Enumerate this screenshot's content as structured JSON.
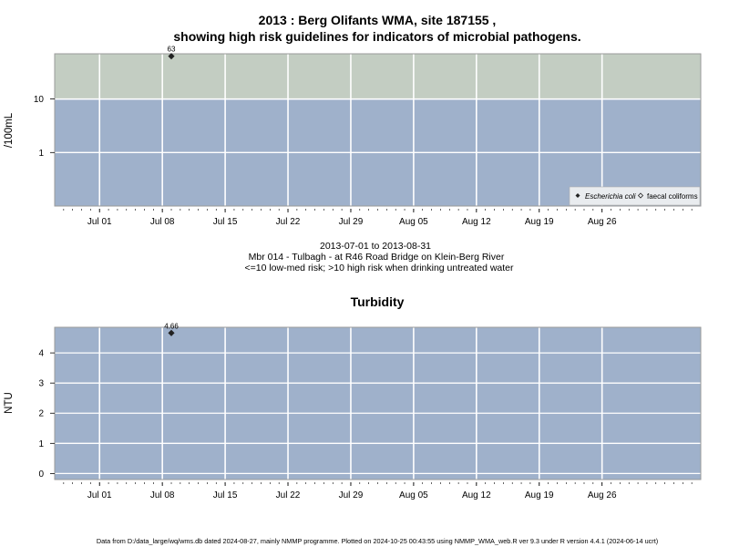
{
  "footer": "Data from D:/data_large/wq/wms.db dated 2024-08-27, mainly NMMP programme. Plotted on 2024-10-25 00:43:55 using NMMP_WMA_web.R ver 9.3 under R version 4.4.1 (2024-06-14 ucrt)",
  "chart_data": [
    {
      "type": "scatter",
      "title_line1": "2013 : Berg Olifants WMA, site 187155 ,",
      "title_line2": "showing high risk guidelines for indicators of microbial pathogens.",
      "ylabel": "/100mL",
      "yscale": "log",
      "ylim": [
        0.1,
        70
      ],
      "yticks": [
        1,
        10
      ],
      "ytick_labels": [
        "1",
        "10"
      ],
      "xlim": [
        "2013-06-26",
        "2013-09-06"
      ],
      "xticks": [
        "2013-07-01",
        "2013-07-08",
        "2013-07-15",
        "2013-07-22",
        "2013-07-29",
        "2013-08-05",
        "2013-08-12",
        "2013-08-19",
        "2013-08-26"
      ],
      "xtick_labels": [
        "Jul 01",
        "Jul 08",
        "Jul 15",
        "Jul 22",
        "Jul 29",
        "Aug 05",
        "Aug 12",
        "Aug 19",
        "Aug 26"
      ],
      "guideline": 10,
      "bands": [
        {
          "from": 10,
          "to": 70,
          "color": "#c3cdc2",
          "meaning": ">10 high risk"
        },
        {
          "from": 0.1,
          "to": 10,
          "color": "#9fb1cb",
          "meaning": "<=10 low-med risk"
        }
      ],
      "grid": true,
      "legend_position": "bottom-right",
      "legend": [
        {
          "label": "Escherichia coli",
          "marker": "filled-diamond",
          "italic": true
        },
        {
          "label": "faecal coliforms",
          "marker": "open-diamond",
          "italic": false
        }
      ],
      "series": [
        {
          "name": "Escherichia coli",
          "marker": "filled-diamond",
          "points": [
            {
              "x": "2013-07-09",
              "y": 63,
              "label": "63"
            }
          ]
        }
      ],
      "notes": [
        "2013-07-01 to 2013-08-31",
        "Mbr 014 - Tulbagh - at R46 Road Bridge on Klein-Berg River",
        "<=10 low-med risk; >10 high risk when drinking untreated water"
      ]
    },
    {
      "type": "scatter",
      "title": "Turbidity",
      "ylabel": "NTU",
      "yscale": "linear",
      "ylim": [
        -0.2,
        4.85
      ],
      "yticks": [
        0,
        1,
        2,
        3,
        4
      ],
      "ytick_labels": [
        "0",
        "1",
        "2",
        "3",
        "4"
      ],
      "xlim": [
        "2013-06-26",
        "2013-09-06"
      ],
      "xticks": [
        "2013-07-01",
        "2013-07-08",
        "2013-07-15",
        "2013-07-22",
        "2013-07-29",
        "2013-08-05",
        "2013-08-12",
        "2013-08-19",
        "2013-08-26"
      ],
      "xtick_labels": [
        "Jul 01",
        "Jul 08",
        "Jul 15",
        "Jul 22",
        "Jul 29",
        "Aug 05",
        "Aug 12",
        "Aug 19",
        "Aug 26"
      ],
      "background_color": "#9fb1cb",
      "grid": true,
      "series": [
        {
          "marker": "filled-diamond",
          "points": [
            {
              "x": "2013-07-09",
              "y": 4.66,
              "label": "4.66"
            }
          ]
        }
      ]
    }
  ]
}
